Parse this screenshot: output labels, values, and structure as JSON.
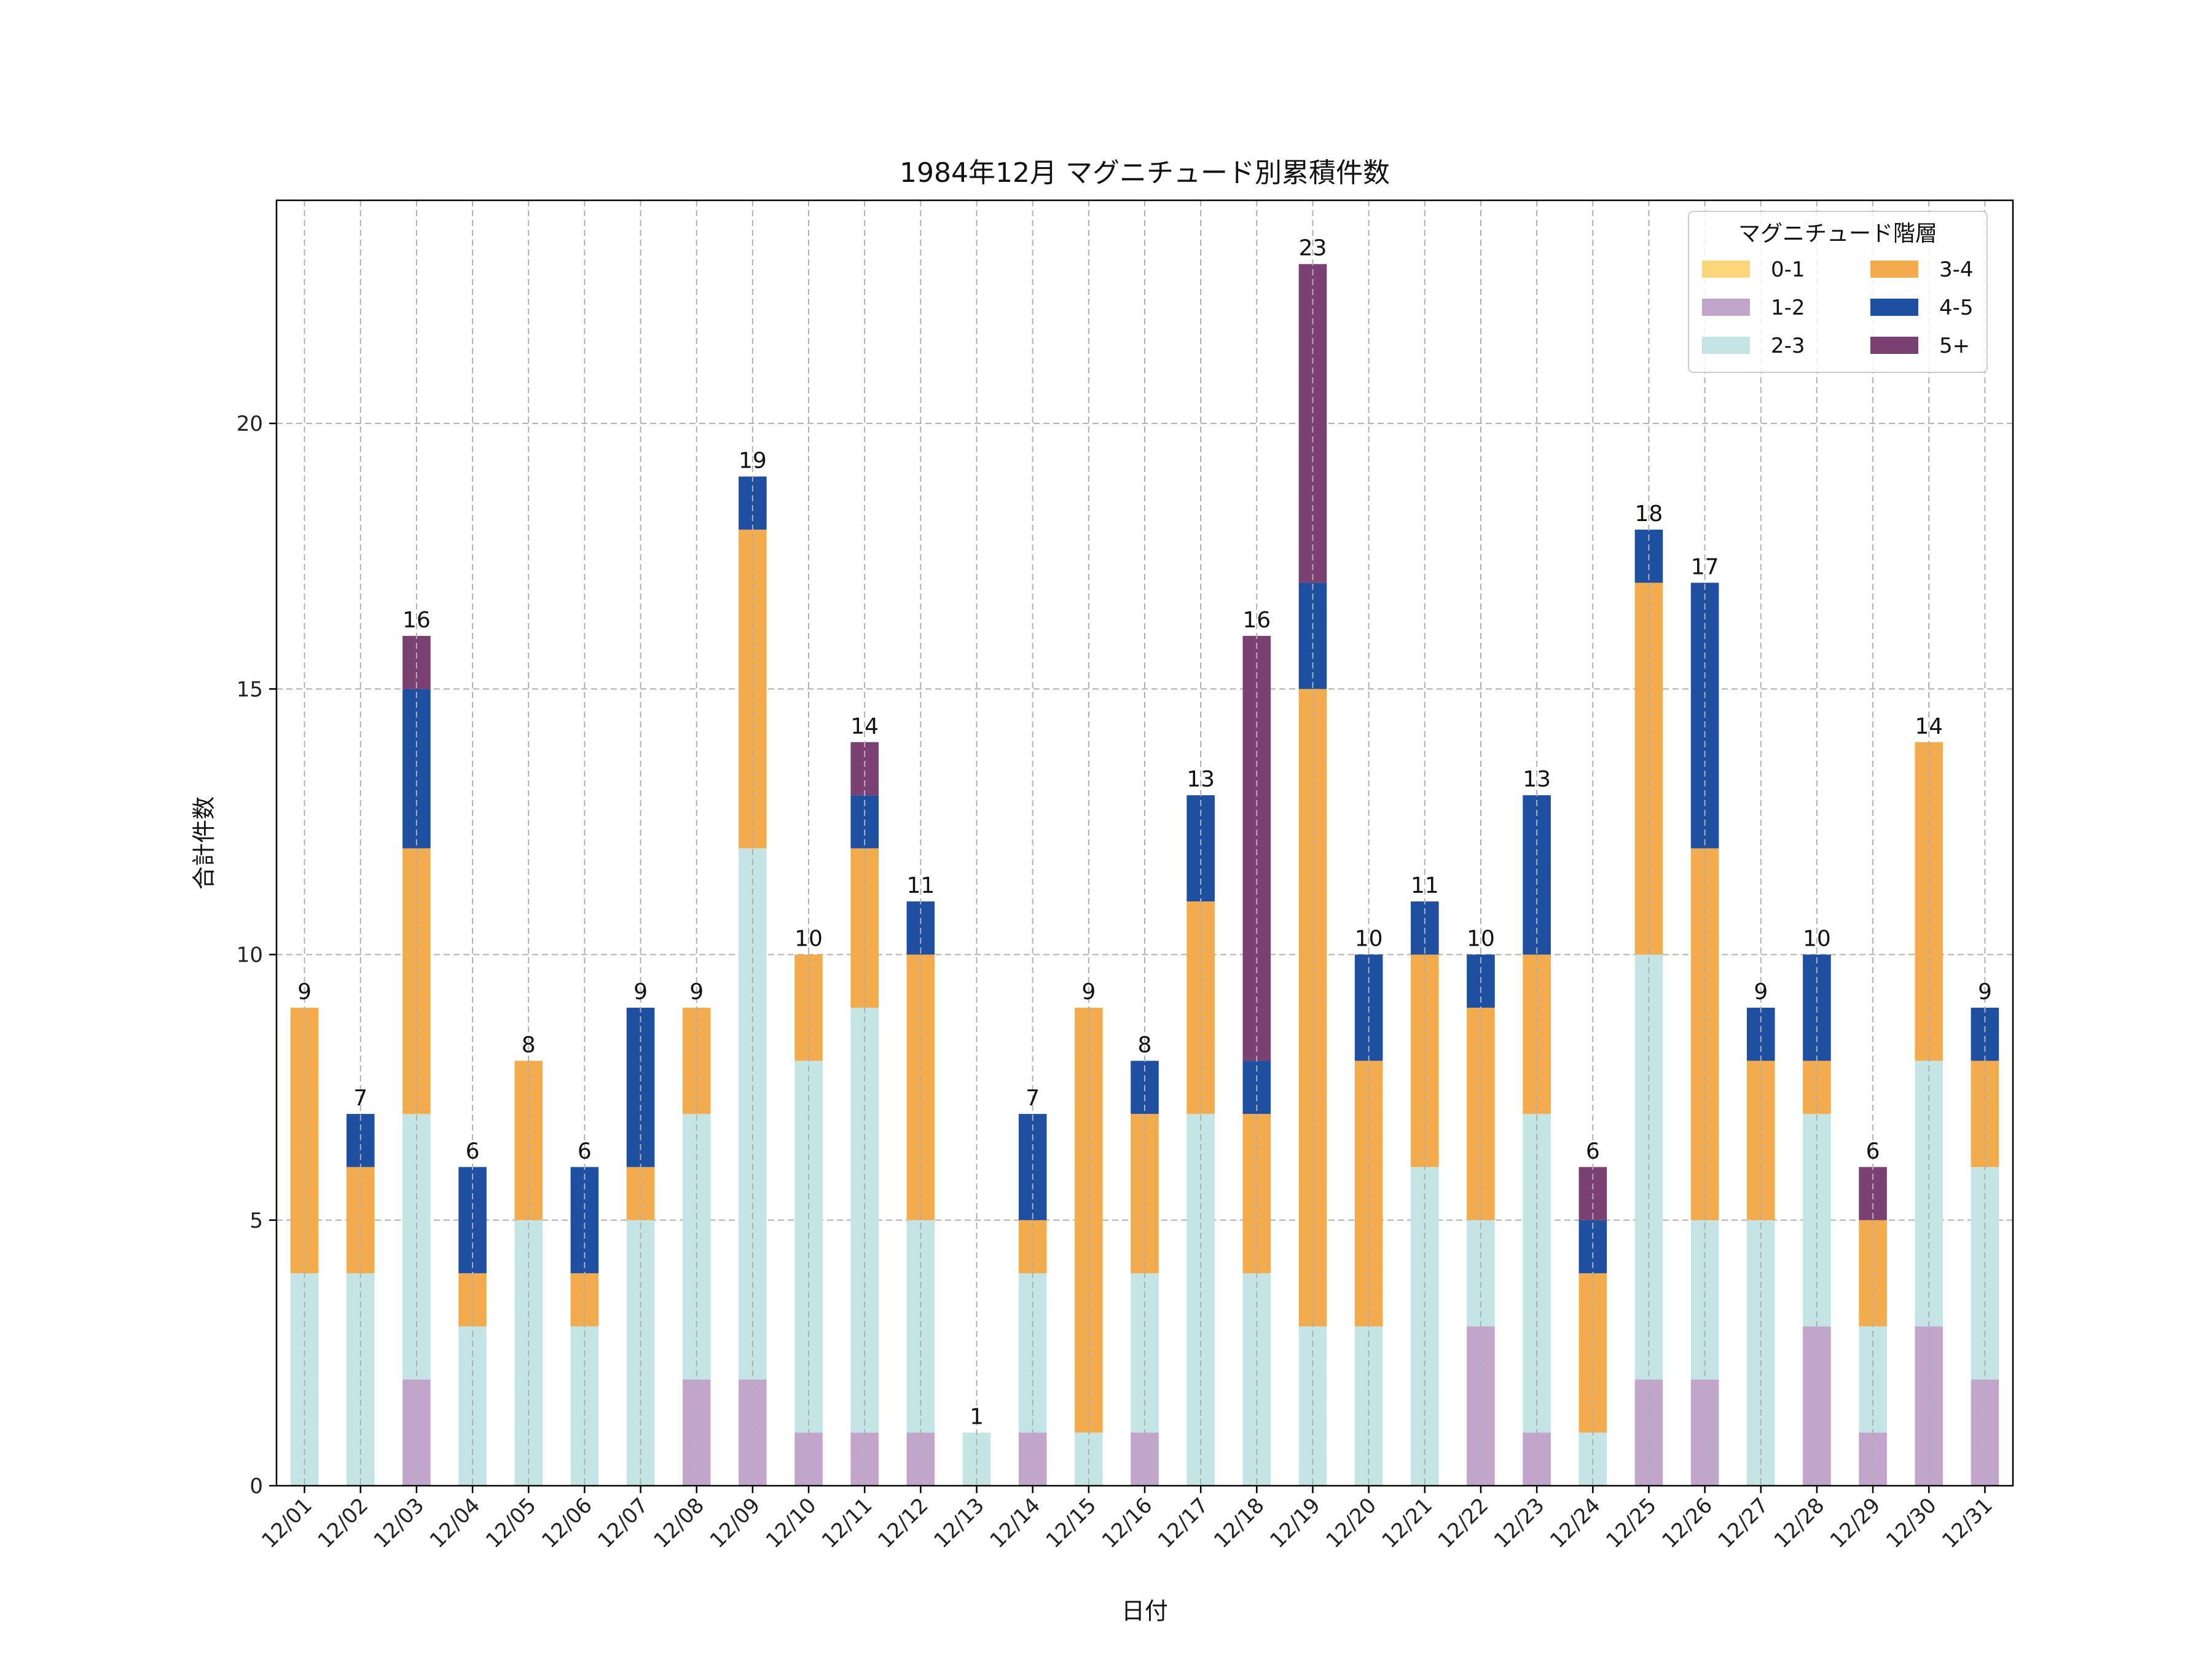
{
  "chart_data": {
    "type": "bar",
    "stacked": true,
    "title": "1984年12月 マグニチュード別累積件数",
    "xlabel": "日付",
    "ylabel": "合計件数",
    "ylim": [
      0,
      24.2
    ],
    "yticks": [
      0,
      5,
      10,
      15,
      20
    ],
    "grid": true,
    "legend": {
      "title": "マグニチュード階層",
      "position": "top-right",
      "columns": 2
    },
    "categories": [
      "12/01",
      "12/02",
      "12/03",
      "12/04",
      "12/05",
      "12/06",
      "12/07",
      "12/08",
      "12/09",
      "12/10",
      "12/11",
      "12/12",
      "12/13",
      "12/14",
      "12/15",
      "12/16",
      "12/17",
      "12/18",
      "12/19",
      "12/20",
      "12/21",
      "12/22",
      "12/23",
      "12/24",
      "12/25",
      "12/26",
      "12/27",
      "12/28",
      "12/29",
      "12/30",
      "12/31"
    ],
    "series": [
      {
        "name": "0-1",
        "color": "#FDD57A",
        "values": [
          0,
          0,
          0,
          0,
          0,
          0,
          0,
          0,
          0,
          0,
          0,
          0,
          0,
          0,
          0,
          0,
          0,
          0,
          0,
          0,
          0,
          0,
          0,
          0,
          0,
          0,
          0,
          0,
          0,
          0,
          0
        ]
      },
      {
        "name": "1-2",
        "color": "#C2A5CB",
        "values": [
          0,
          0,
          2,
          0,
          0,
          0,
          0,
          2,
          2,
          1,
          1,
          1,
          0,
          1,
          0,
          1,
          0,
          0,
          0,
          0,
          0,
          3,
          1,
          0,
          2,
          2,
          0,
          3,
          1,
          3,
          2
        ]
      },
      {
        "name": "2-3",
        "color": "#C4E4E6",
        "values": [
          4,
          4,
          5,
          3,
          5,
          3,
          5,
          5,
          10,
          7,
          8,
          4,
          1,
          3,
          1,
          3,
          7,
          4,
          3,
          3,
          6,
          2,
          6,
          1,
          8,
          3,
          5,
          4,
          2,
          5,
          4
        ]
      },
      {
        "name": "3-4",
        "color": "#F2AC4D",
        "values": [
          5,
          2,
          5,
          1,
          3,
          1,
          1,
          2,
          6,
          2,
          3,
          5,
          0,
          1,
          8,
          3,
          4,
          3,
          12,
          5,
          4,
          4,
          3,
          3,
          7,
          7,
          3,
          1,
          2,
          6,
          2
        ]
      },
      {
        "name": "4-5",
        "color": "#1F4FA0",
        "values": [
          0,
          1,
          3,
          2,
          0,
          2,
          3,
          0,
          1,
          0,
          1,
          1,
          0,
          2,
          0,
          1,
          2,
          1,
          2,
          2,
          1,
          1,
          3,
          1,
          1,
          5,
          1,
          2,
          0,
          0,
          1
        ]
      },
      {
        "name": "5+",
        "color": "#7B4173",
        "values": [
          0,
          0,
          1,
          0,
          0,
          0,
          0,
          0,
          0,
          0,
          1,
          0,
          0,
          0,
          0,
          0,
          0,
          8,
          6,
          0,
          0,
          0,
          0,
          1,
          0,
          0,
          0,
          0,
          1,
          0,
          0
        ]
      }
    ],
    "totals": [
      9,
      7,
      16,
      6,
      8,
      6,
      9,
      9,
      19,
      10,
      14,
      11,
      1,
      7,
      9,
      8,
      13,
      16,
      23,
      10,
      11,
      10,
      13,
      6,
      18,
      17,
      9,
      10,
      6,
      14,
      9
    ]
  }
}
